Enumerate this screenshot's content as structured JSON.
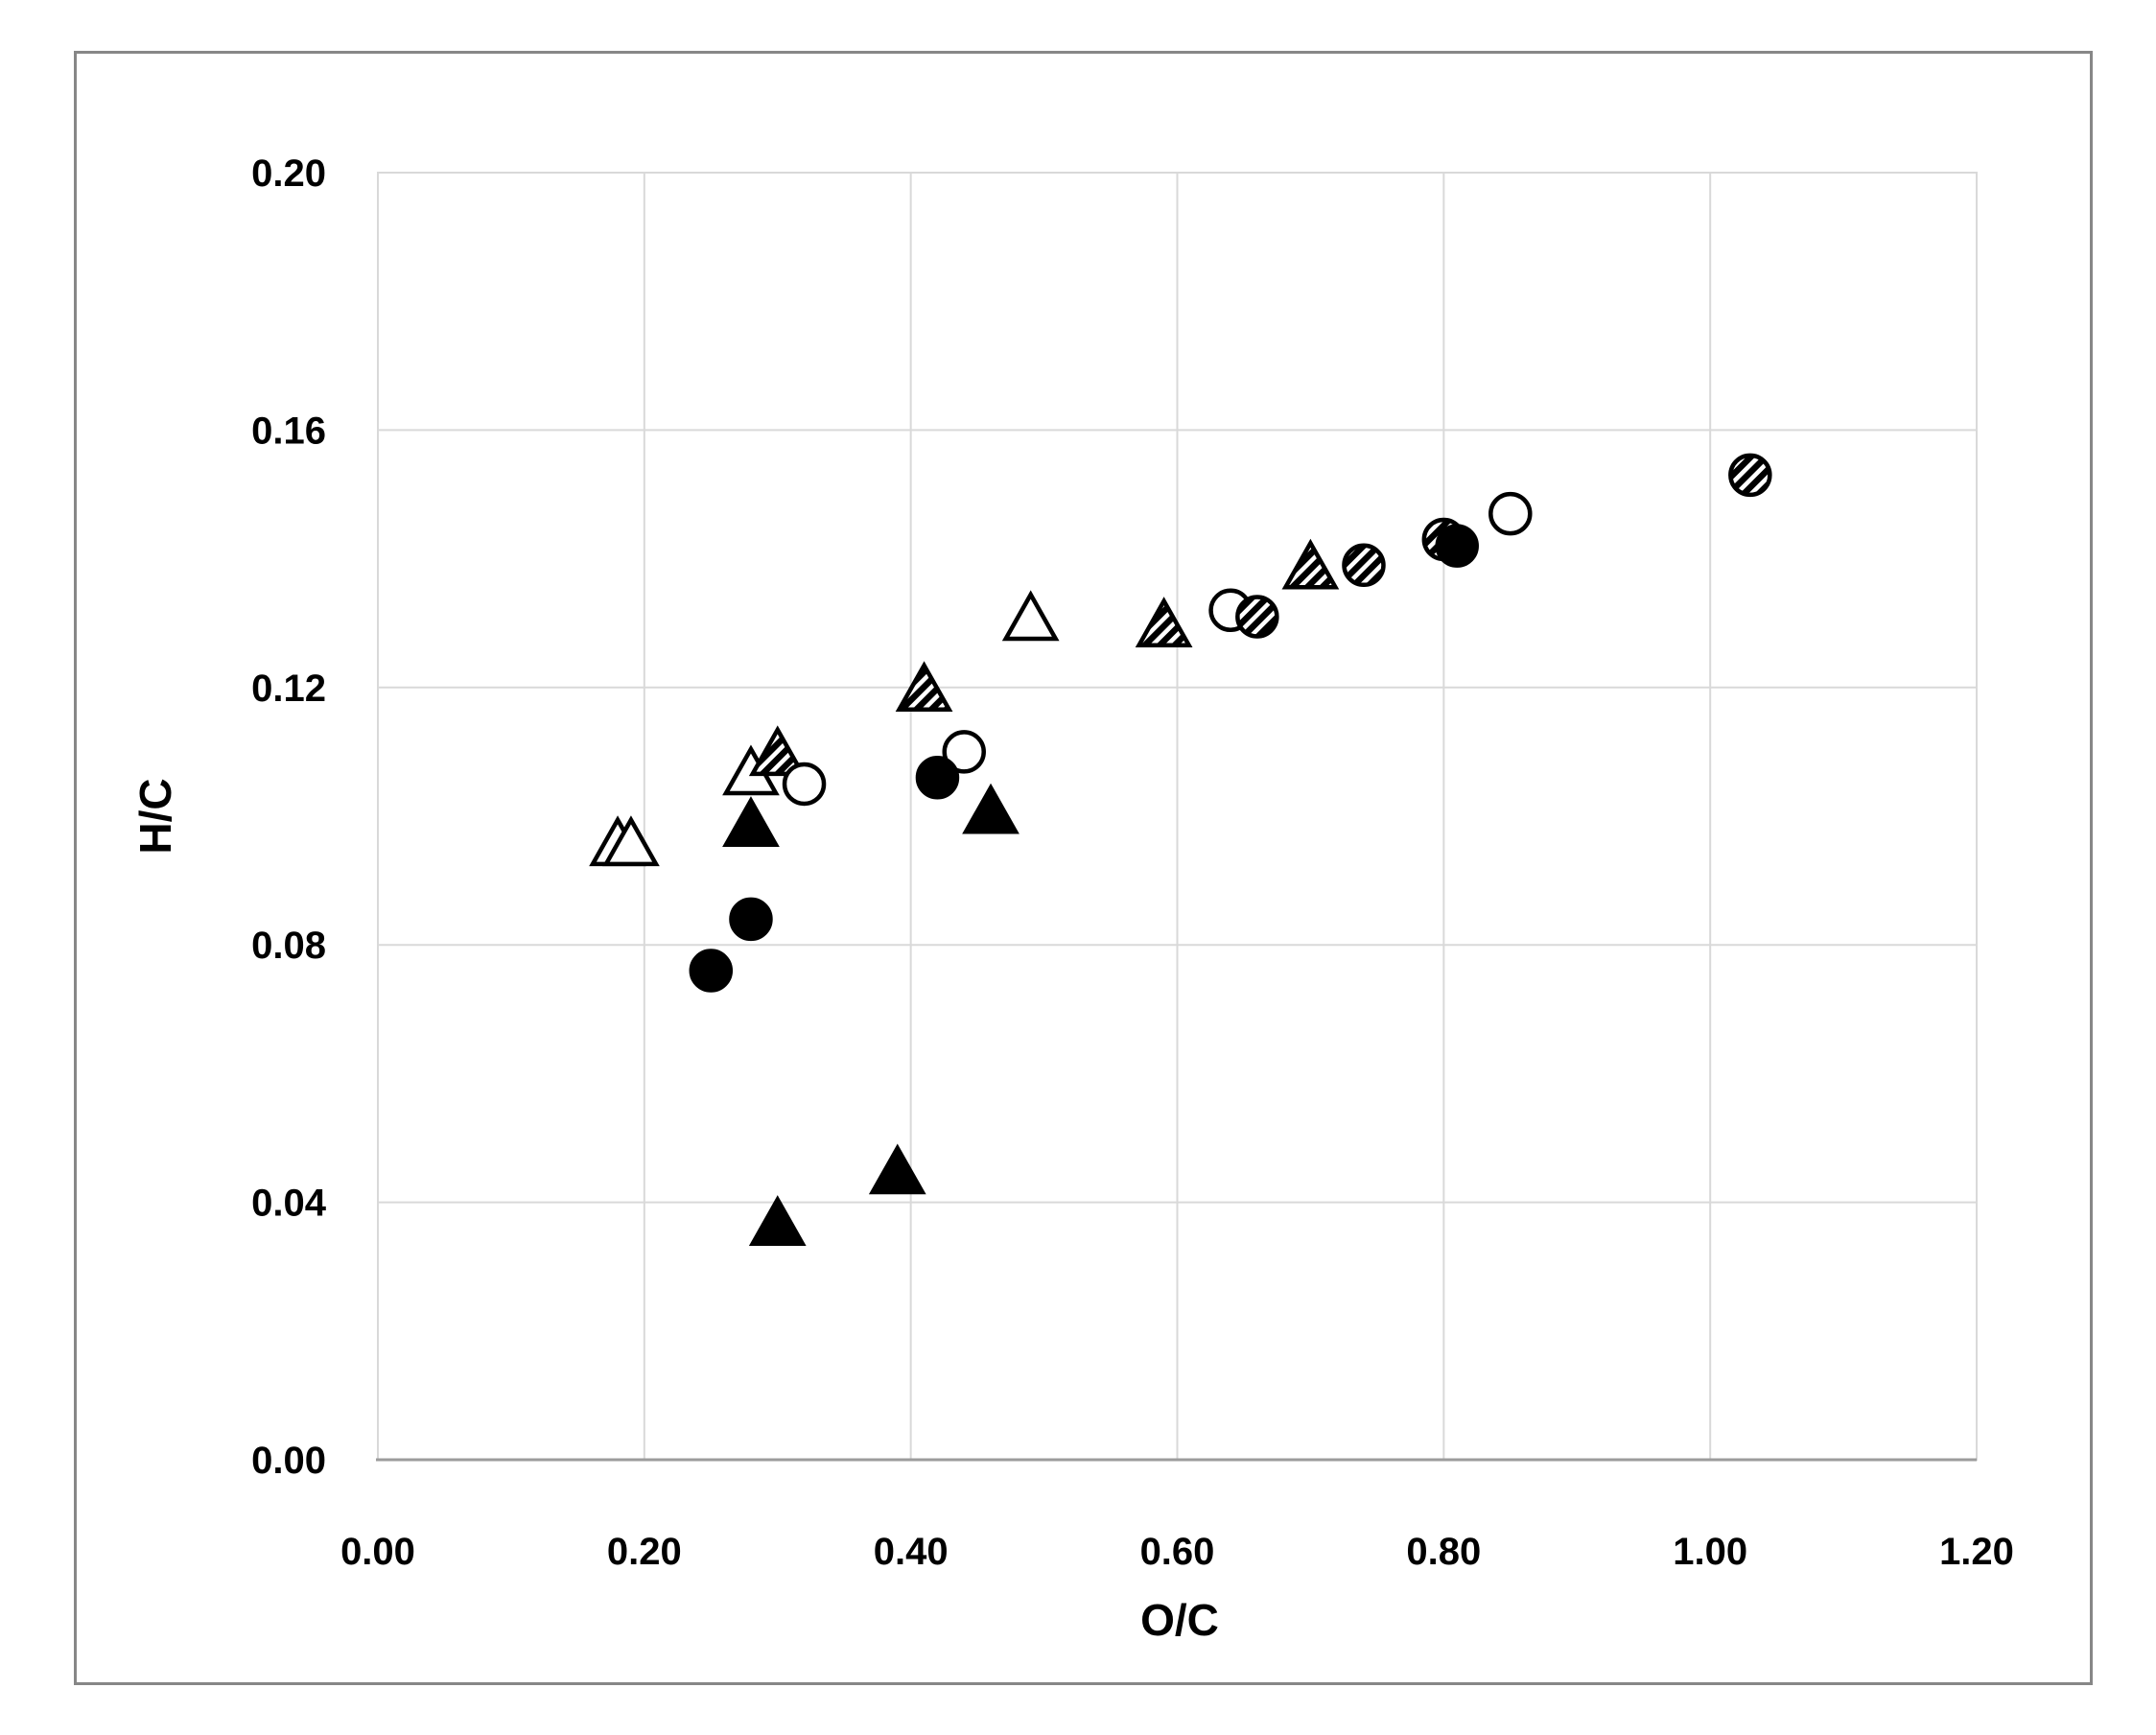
{
  "figure": {
    "background": "#ffffff",
    "border_color": "#878787"
  },
  "chart_data": {
    "type": "scatter",
    "title": "",
    "xlabel": "O/C",
    "ylabel": "H/C",
    "xlim": [
      0.0,
      1.2
    ],
    "ylim": [
      0.0,
      0.2
    ],
    "x_ticks": [
      "0.00",
      "0.20",
      "0.40",
      "0.60",
      "0.80",
      "1.00",
      "1.20"
    ],
    "y_ticks": [
      "0.00",
      "0.04",
      "0.08",
      "0.12",
      "0.16",
      "0.20"
    ],
    "grid": true,
    "legend_position": "none",
    "marker_color": "#000000",
    "marker_open_fill": "#ffffff",
    "gridline_color": "#d9d9d9",
    "axis_line_color": "#9c9c9c",
    "series": [
      {
        "name": "triangle-open",
        "marker": "triangle",
        "fill": "open",
        "points": [
          [
            0.18,
            0.096
          ],
          [
            0.19,
            0.096
          ],
          [
            0.28,
            0.107
          ],
          [
            0.49,
            0.131
          ]
        ]
      },
      {
        "name": "triangle-hatched",
        "marker": "triangle",
        "fill": "hatched",
        "points": [
          [
            0.3,
            0.11
          ],
          [
            0.41,
            0.12
          ],
          [
            0.59,
            0.13
          ],
          [
            0.7,
            0.139
          ]
        ]
      },
      {
        "name": "triangle-filled",
        "marker": "triangle",
        "fill": "solid",
        "points": [
          [
            0.3,
            0.037
          ],
          [
            0.39,
            0.045
          ],
          [
            0.28,
            0.099
          ],
          [
            0.46,
            0.101
          ]
        ]
      },
      {
        "name": "circle-open",
        "marker": "circle",
        "fill": "open",
        "points": [
          [
            0.32,
            0.105
          ],
          [
            0.44,
            0.11
          ],
          [
            0.64,
            0.132
          ],
          [
            0.85,
            0.147
          ]
        ]
      },
      {
        "name": "circle-hatched",
        "marker": "circle",
        "fill": "hatched",
        "points": [
          [
            0.66,
            0.131
          ],
          [
            0.74,
            0.139
          ],
          [
            0.8,
            0.143
          ],
          [
            1.03,
            0.153
          ]
        ]
      },
      {
        "name": "circle-filled",
        "marker": "circle",
        "fill": "solid",
        "points": [
          [
            0.25,
            0.076
          ],
          [
            0.28,
            0.084
          ],
          [
            0.42,
            0.106
          ],
          [
            0.81,
            0.142
          ]
        ]
      }
    ]
  }
}
